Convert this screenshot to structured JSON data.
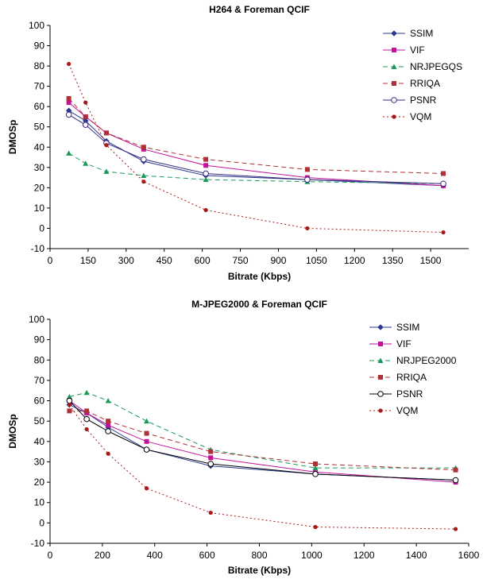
{
  "chart_data": [
    {
      "type": "line",
      "title": "H264 & Foreman QCIF",
      "xlabel": "Bitrate (Kbps)",
      "ylabel": "DMOSp",
      "xlim": [
        0,
        1650
      ],
      "ylim": [
        -10,
        100
      ],
      "xticks": [
        0,
        150,
        300,
        450,
        600,
        750,
        900,
        1050,
        1200,
        1350,
        1500
      ],
      "yticks": [
        -10,
        0,
        10,
        20,
        30,
        40,
        50,
        60,
        70,
        80,
        90,
        100
      ],
      "xtick_labels": [
        "0",
        "150",
        "300",
        "450",
        "600",
        "750",
        "900",
        "1050",
        "1200",
        "1350",
        "1500"
      ],
      "ytick_labels": [
        "-10",
        "0",
        "10",
        "20",
        "30",
        "40",
        "50",
        "60",
        "70",
        "80",
        "90",
        "100"
      ],
      "grid": false,
      "legend_position": "top-right",
      "series": [
        {
          "name": "SSIM",
          "color": "#2b3990",
          "dash": "",
          "marker": "diamond",
          "x": [
            74,
            140,
            222,
            369,
            614,
            1014,
            1550
          ],
          "y": [
            58,
            53,
            43,
            33,
            26,
            24,
            21
          ]
        },
        {
          "name": "VIF",
          "color": "#c0139a",
          "dash": "",
          "marker": "square",
          "x": [
            74,
            140,
            222,
            369,
            614,
            1014,
            1550
          ],
          "y": [
            62,
            55,
            47,
            39,
            31,
            25,
            21
          ]
        },
        {
          "name": "NRJPEGQS",
          "color": "#1a9a5a",
          "dash": "6,4",
          "marker": "triangle",
          "x": [
            74,
            140,
            222,
            369,
            614,
            1014,
            1550
          ],
          "y": [
            37,
            32,
            28,
            26,
            24,
            23,
            22
          ]
        },
        {
          "name": "RRIQA",
          "color": "#b03038",
          "dash": "6,4",
          "marker": "square",
          "x": [
            74,
            140,
            222,
            369,
            614,
            1014,
            1550
          ],
          "y": [
            64,
            55,
            47,
            40,
            34,
            29,
            27
          ]
        },
        {
          "name": "PSNR",
          "color": "#3a2a80",
          "dash": "",
          "marker": "circle",
          "x": [
            74,
            140,
            222,
            369,
            614,
            1014,
            1550
          ],
          "y": [
            56,
            51,
            42,
            34,
            27,
            24,
            22
          ]
        },
        {
          "name": "VQM",
          "color": "#a81818",
          "dash": "2,3",
          "marker": "dot",
          "x": [
            74,
            140,
            222,
            369,
            614,
            1014,
            1550
          ],
          "y": [
            81,
            62,
            41,
            23,
            9,
            0,
            -2
          ]
        }
      ]
    },
    {
      "type": "line",
      "title": "M-JPEG2000 & Foreman QCIF",
      "xlabel": "Bitrate (Kbps)",
      "ylabel": "DMOSp",
      "xlim": [
        0,
        1600
      ],
      "ylim": [
        -10,
        100
      ],
      "xticks": [
        0,
        200,
        400,
        600,
        800,
        1000,
        1200,
        1400,
        1600
      ],
      "yticks": [
        -10,
        0,
        10,
        20,
        30,
        40,
        50,
        60,
        70,
        80,
        90,
        100
      ],
      "xtick_labels": [
        "0",
        "200",
        "400",
        "600",
        "800",
        "1000",
        "1200",
        "1400",
        "1600"
      ],
      "ytick_labels": [
        "-10",
        "0",
        "10",
        "20",
        "30",
        "40",
        "50",
        "60",
        "70",
        "80",
        "90",
        "100"
      ],
      "grid": false,
      "legend_position": "top-right",
      "series": [
        {
          "name": "SSIM",
          "color": "#2b3990",
          "dash": "",
          "marker": "diamond",
          "x": [
            74,
            140,
            222,
            369,
            614,
            1014,
            1550
          ],
          "y": [
            58,
            54,
            47,
            36,
            28,
            24,
            21
          ]
        },
        {
          "name": "VIF",
          "color": "#c0139a",
          "dash": "",
          "marker": "square",
          "x": [
            74,
            140,
            222,
            369,
            614,
            1014,
            1550
          ],
          "y": [
            60,
            54,
            48,
            40,
            32,
            25,
            20
          ]
        },
        {
          "name": "NRJPEG2000",
          "color": "#1a9a5a",
          "dash": "6,4",
          "marker": "triangle",
          "x": [
            74,
            140,
            222,
            369,
            614,
            1014,
            1550
          ],
          "y": [
            62,
            64,
            60,
            50,
            36,
            27,
            27
          ]
        },
        {
          "name": "RRIQA",
          "color": "#b03038",
          "dash": "6,4",
          "marker": "square",
          "x": [
            74,
            140,
            222,
            369,
            614,
            1014,
            1550
          ],
          "y": [
            55,
            55,
            50,
            44,
            35,
            29,
            26
          ]
        },
        {
          "name": "PSNR",
          "color": "#000000",
          "dash": "",
          "marker": "circle",
          "x": [
            74,
            140,
            222,
            369,
            614,
            1014,
            1550
          ],
          "y": [
            60,
            51,
            45,
            36,
            29,
            24,
            21
          ]
        },
        {
          "name": "VQM",
          "color": "#a81818",
          "dash": "2,3",
          "marker": "dot",
          "x": [
            74,
            140,
            222,
            369,
            614,
            1014,
            1550
          ],
          "y": [
            58,
            46,
            34,
            17,
            5,
            -2,
            -3
          ]
        }
      ]
    }
  ]
}
